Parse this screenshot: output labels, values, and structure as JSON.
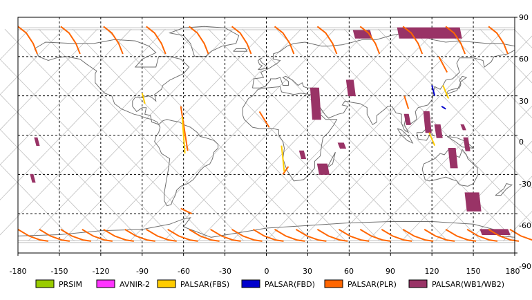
{
  "map": {
    "lon_ticks": [
      "-180",
      "-150",
      "-120",
      "-90",
      "-60",
      "-30",
      "0",
      "30",
      "60",
      "90",
      "120",
      "150",
      "180"
    ],
    "lat_ticks": [
      "90",
      "60",
      "30",
      "0",
      "-30",
      "-60",
      "-90"
    ],
    "lon_range": [
      -180,
      180
    ],
    "lat_range": [
      -90,
      90
    ],
    "grid": "dashed",
    "colors": {
      "frame": "#000000",
      "grid": "#000000",
      "coastline": "#707070",
      "orbit_tracks": "#c0c0c0"
    }
  },
  "legend": {
    "items": [
      {
        "label": "PRSIM",
        "color": "#99cc00"
      },
      {
        "label": "AVNIR-2",
        "color": "#ff33ff"
      },
      {
        "label": "PALSAR(FBS)",
        "color": "#ffcc00"
      },
      {
        "label": "PALSAR(FBD)",
        "color": "#0000cc"
      },
      {
        "label": "PALSAR(PLR)",
        "color": "#ff6600"
      },
      {
        "label": "PALSAR(WB1/WB2)",
        "color": "#993366"
      }
    ]
  },
  "observations": {
    "wb": [
      {
        "lon": [
          -168,
          -166
        ],
        "lat": [
          -2,
          -8
        ]
      },
      {
        "lon": [
          -171,
          -169
        ],
        "lat": [
          -30,
          -36
        ]
      },
      {
        "lon": [
          32,
          38
        ],
        "lat": [
          36,
          12
        ]
      },
      {
        "lon": [
          24,
          27
        ],
        "lat": [
          -12,
          -18
        ]
      },
      {
        "lon": [
          37,
          44
        ],
        "lat": [
          -22,
          -30
        ]
      },
      {
        "lon": [
          52,
          56
        ],
        "lat": [
          -6,
          -10
        ]
      },
      {
        "lon": [
          58,
          63
        ],
        "lat": [
          42,
          30
        ]
      },
      {
        "lon": [
          63,
          75
        ],
        "lat": [
          80,
          74
        ]
      },
      {
        "lon": [
          95,
          140
        ],
        "lat": [
          82,
          74
        ]
      },
      {
        "lon": [
          100,
          103
        ],
        "lat": [
          16,
          8
        ]
      },
      {
        "lon": [
          114,
          118
        ],
        "lat": [
          18,
          2
        ]
      },
      {
        "lon": [
          122,
          126
        ],
        "lat": [
          8,
          -2
        ]
      },
      {
        "lon": [
          132,
          137
        ],
        "lat": [
          -10,
          -25
        ]
      },
      {
        "lon": [
          141,
          143
        ],
        "lat": [
          8,
          4
        ]
      },
      {
        "lon": [
          143,
          146
        ],
        "lat": [
          -2,
          -12
        ]
      },
      {
        "lon": [
          144,
          154
        ],
        "lat": [
          -44,
          -58
        ]
      },
      {
        "lon": [
          155,
          175
        ],
        "lat": [
          -72,
          -76
        ]
      }
    ],
    "plr": [
      {
        "lon": [
          -62,
          -57
        ],
        "lat": [
          22,
          -12
        ]
      },
      {
        "lon": [
          -62,
          -54
        ],
        "lat": [
          -56,
          -60
        ]
      },
      {
        "lon": [
          -5,
          2
        ],
        "lat": [
          18,
          6
        ]
      },
      {
        "lon": [
          12,
          16
        ],
        "lat": [
          -30,
          -24
        ]
      },
      {
        "lon": [
          100,
          103
        ],
        "lat": [
          30,
          20
        ]
      },
      {
        "lon": [
          125,
          131
        ],
        "lat": [
          60,
          48
        ]
      }
    ],
    "fbs": [
      {
        "lon": [
          -90,
          -88
        ],
        "lat": [
          32,
          24
        ]
      },
      {
        "lon": [
          -61,
          -59
        ],
        "lat": [
          14,
          -14
        ]
      },
      {
        "lon": [
          11,
          13
        ],
        "lat": [
          -8,
          -28
        ]
      },
      {
        "lon": [
          118,
          122
        ],
        "lat": [
          2,
          -8
        ]
      },
      {
        "lon": [
          128,
          132
        ],
        "lat": [
          38,
          28
        ]
      }
    ],
    "fbd": [
      {
        "lon": [
          120,
          122
        ],
        "lat": [
          38,
          30
        ]
      },
      {
        "lon": [
          127,
          130
        ],
        "lat": [
          22,
          20
        ]
      }
    ]
  }
}
